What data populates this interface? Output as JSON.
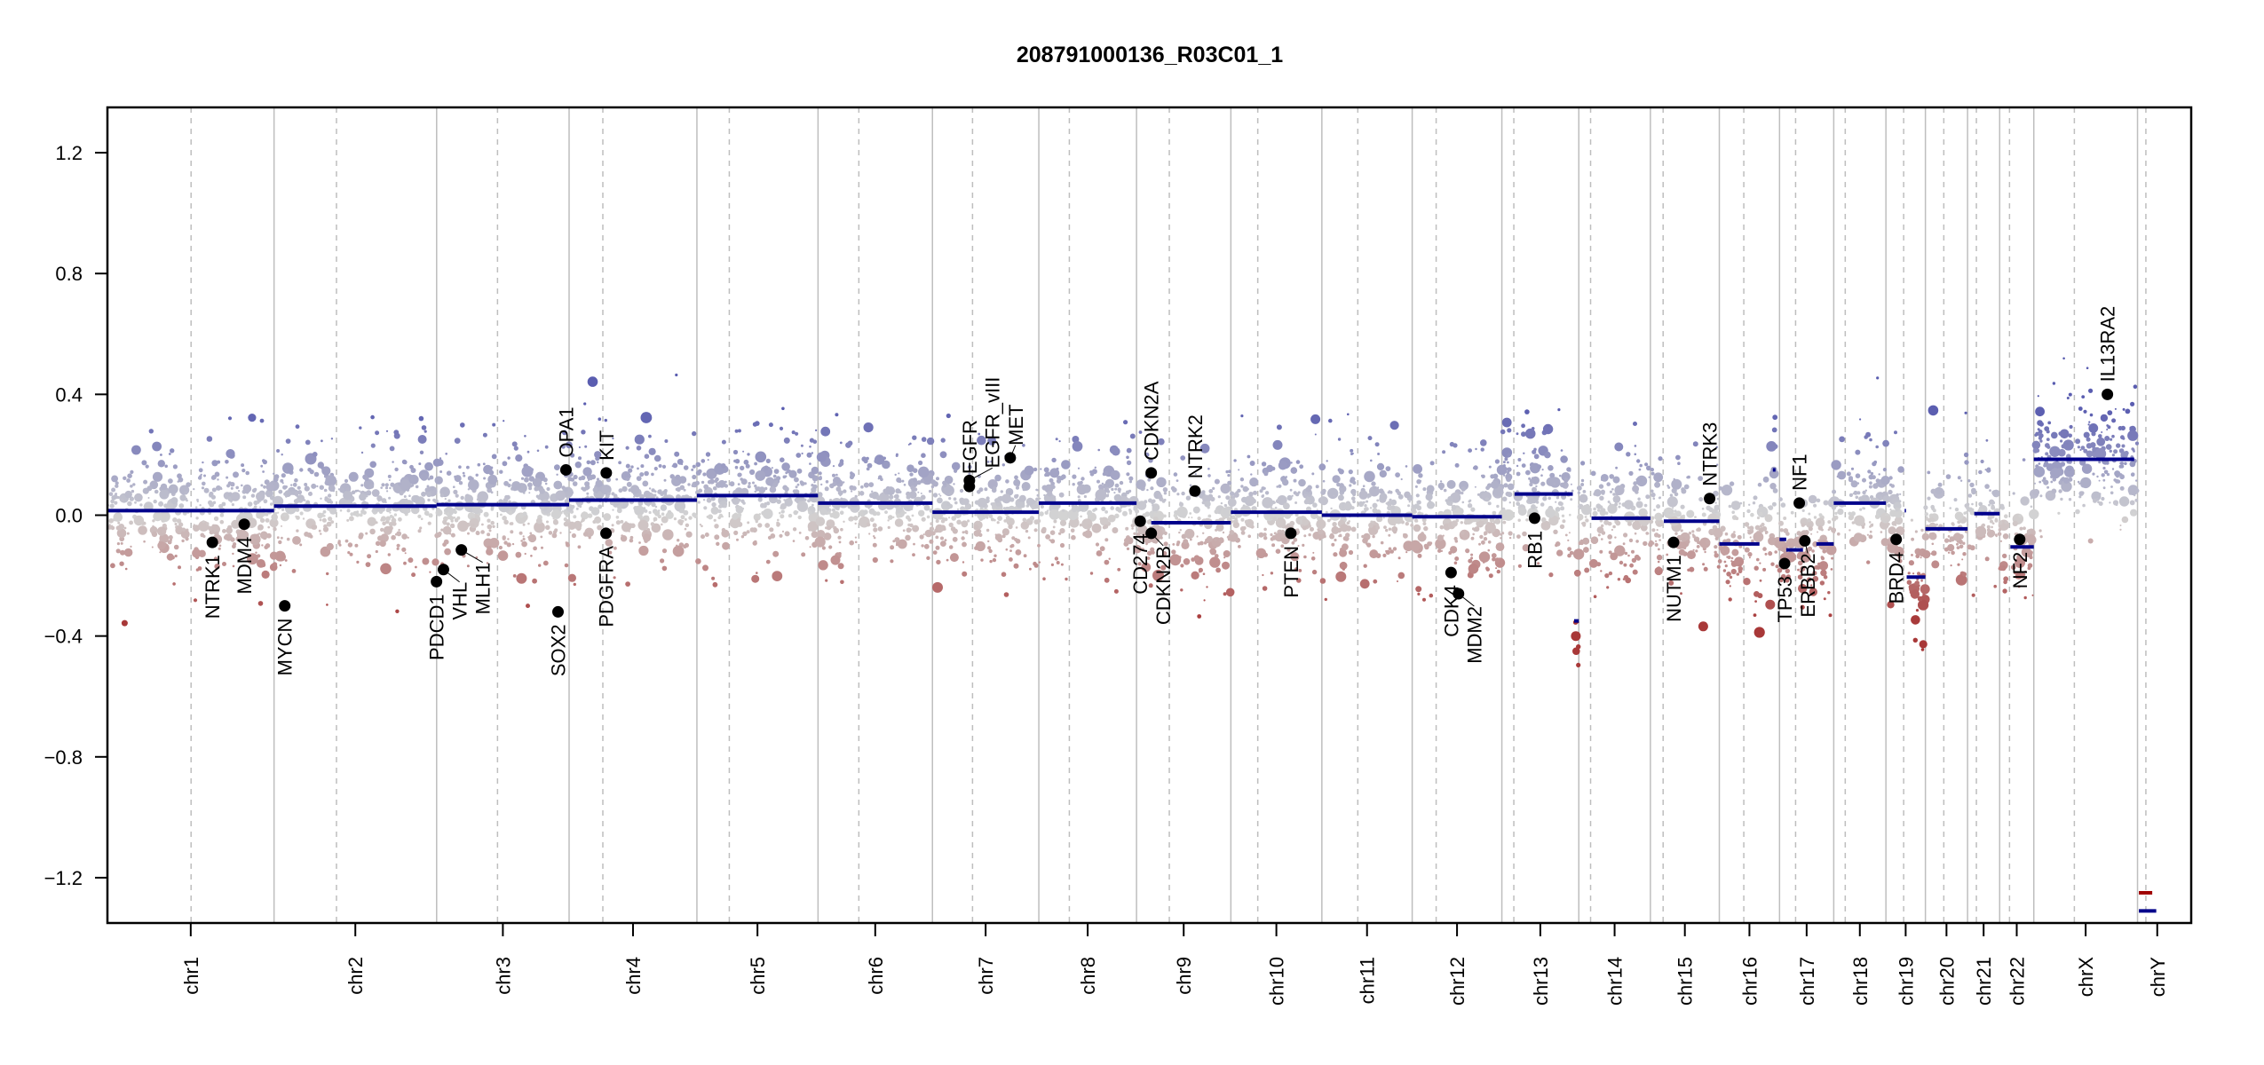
{
  "chart_data": {
    "type": "scatter",
    "title": "208791000136_R03C01_1",
    "xlabel": "",
    "ylabel": "",
    "ylim": [
      -1.35,
      1.35
    ],
    "yticks": [
      -1.2,
      -0.8,
      -0.4,
      0.0,
      0.4,
      0.8,
      1.2
    ],
    "ytick_labels": [
      "-1.2",
      "-0.8",
      "-0.4",
      "0.0",
      "0.4",
      "0.8",
      "1.2"
    ],
    "grid": false,
    "colors": {
      "gain": "#5a5db0",
      "neutral": "#d3d3d3",
      "loss": "#a83838",
      "segment": "#00008b",
      "segment_y": "#a00000",
      "gene": "#000000",
      "chrom_line": "#bebebe"
    },
    "chromosomes": [
      {
        "name": "chr1",
        "length_mb": 249,
        "centromere_mb": 125
      },
      {
        "name": "chr2",
        "length_mb": 243,
        "centromere_mb": 93.3
      },
      {
        "name": "chr3",
        "length_mb": 198,
        "centromere_mb": 91
      },
      {
        "name": "chr4",
        "length_mb": 191,
        "centromere_mb": 50.4
      },
      {
        "name": "chr5",
        "length_mb": 181,
        "centromere_mb": 48.4
      },
      {
        "name": "chr6",
        "length_mb": 171,
        "centromere_mb": 61
      },
      {
        "name": "chr7",
        "length_mb": 159,
        "centromere_mb": 59.9
      },
      {
        "name": "chr8",
        "length_mb": 146,
        "centromere_mb": 45.6
      },
      {
        "name": "chr9",
        "length_mb": 141,
        "centromere_mb": 49
      },
      {
        "name": "chr10",
        "length_mb": 136,
        "centromere_mb": 40.2
      },
      {
        "name": "chr11",
        "length_mb": 135,
        "centromere_mb": 53.7
      },
      {
        "name": "chr12",
        "length_mb": 134,
        "centromere_mb": 35.8
      },
      {
        "name": "chr13",
        "length_mb": 115,
        "centromere_mb": 17.9
      },
      {
        "name": "chr14",
        "length_mb": 107,
        "centromere_mb": 17.6
      },
      {
        "name": "chr15",
        "length_mb": 103,
        "centromere_mb": 19
      },
      {
        "name": "chr16",
        "length_mb": 90,
        "centromere_mb": 36.6
      },
      {
        "name": "chr17",
        "length_mb": 81,
        "centromere_mb": 24
      },
      {
        "name": "chr18",
        "length_mb": 78,
        "centromere_mb": 17.2
      },
      {
        "name": "chr19",
        "length_mb": 59,
        "centromere_mb": 26.5
      },
      {
        "name": "chr20",
        "length_mb": 63,
        "centromere_mb": 27.5
      },
      {
        "name": "chr21",
        "length_mb": 48,
        "centromere_mb": 13.2
      },
      {
        "name": "chr22",
        "length_mb": 51,
        "centromere_mb": 14.7
      },
      {
        "name": "chrX",
        "length_mb": 155,
        "centromere_mb": 60.6
      },
      {
        "name": "chrY",
        "length_mb": 59,
        "centromere_mb": 12.5
      }
    ],
    "segments": [
      {
        "chr": "chr1",
        "start": 0,
        "end": 249,
        "value": 0.015
      },
      {
        "chr": "chr2",
        "start": 0,
        "end": 243,
        "value": 0.03
      },
      {
        "chr": "chr3",
        "start": 0,
        "end": 198,
        "value": 0.035
      },
      {
        "chr": "chr4",
        "start": 0,
        "end": 191,
        "value": 0.05
      },
      {
        "chr": "chr5",
        "start": 0,
        "end": 181,
        "value": 0.065
      },
      {
        "chr": "chr6",
        "start": 0,
        "end": 171,
        "value": 0.04
      },
      {
        "chr": "chr7",
        "start": 0,
        "end": 159,
        "value": 0.01
      },
      {
        "chr": "chr8",
        "start": 0,
        "end": 146,
        "value": 0.04
      },
      {
        "chr": "chr9",
        "start": 22,
        "end": 141,
        "value": -0.025
      },
      {
        "chr": "chr10",
        "start": 0,
        "end": 136,
        "value": 0.01
      },
      {
        "chr": "chr11",
        "start": 0,
        "end": 135,
        "value": 0.0
      },
      {
        "chr": "chr12",
        "start": 0,
        "end": 134,
        "value": -0.005
      },
      {
        "chr": "chr13",
        "start": 19,
        "end": 106,
        "value": 0.07
      },
      {
        "chr": "chr13",
        "start": 108,
        "end": 115,
        "value": -0.35
      },
      {
        "chr": "chr14",
        "start": 19,
        "end": 107,
        "value": -0.01
      },
      {
        "chr": "chr15",
        "start": 20,
        "end": 103,
        "value": -0.02
      },
      {
        "chr": "chr16",
        "start": 0,
        "end": 60,
        "value": -0.095
      },
      {
        "chr": "chr16",
        "start": 80,
        "end": 84,
        "value": 0.15
      },
      {
        "chr": "chr17",
        "start": 0,
        "end": 10,
        "value": -0.08
      },
      {
        "chr": "chr17",
        "start": 10,
        "end": 35,
        "value": -0.115
      },
      {
        "chr": "chr17",
        "start": 55,
        "end": 81,
        "value": -0.095
      },
      {
        "chr": "chr18",
        "start": 0,
        "end": 78,
        "value": 0.04
      },
      {
        "chr": "chr19",
        "start": 28,
        "end": 30,
        "value": 0.015
      },
      {
        "chr": "chr19",
        "start": 31,
        "end": 59,
        "value": -0.205
      },
      {
        "chr": "chr20",
        "start": 0,
        "end": 63,
        "value": -0.045
      },
      {
        "chr": "chr21",
        "start": 10,
        "end": 48,
        "value": 0.005
      },
      {
        "chr": "chr22",
        "start": 16,
        "end": 51,
        "value": -0.105
      },
      {
        "chrY": true,
        "chr": "chrY",
        "start": 2,
        "end": 28,
        "value": -1.31
      },
      {
        "chr": "chrX",
        "start": 0,
        "end": 150,
        "value": 0.185
      }
    ],
    "segments_y_red": [
      {
        "chr": "chrY",
        "start": 2,
        "end": 22,
        "value": -1.25
      }
    ],
    "genes": [
      {
        "name": "NTRK1",
        "chr": "chr1",
        "pos_mb": 156.8,
        "value": -0.09
      },
      {
        "name": "MDM4",
        "chr": "chr1",
        "pos_mb": 204.5,
        "value": -0.03
      },
      {
        "name": "MYCN",
        "chr": "chr2",
        "pos_mb": 16,
        "value": -0.3
      },
      {
        "name": "PDCD1",
        "chr": "chr2",
        "pos_mb": 242.8,
        "value": -0.22
      },
      {
        "name": "VHL",
        "chr": "chr3",
        "pos_mb": 10.2,
        "value": -0.18
      },
      {
        "name": "MLH1",
        "chr": "chr3",
        "pos_mb": 37,
        "value": -0.115
      },
      {
        "name": "SOX2",
        "chr": "chr3",
        "pos_mb": 181.4,
        "value": -0.32
      },
      {
        "name": "OPA1",
        "chr": "chr3",
        "pos_mb": 193.3,
        "value": 0.15
      },
      {
        "name": "KIT",
        "chr": "chr4",
        "pos_mb": 55.5,
        "value": 0.14
      },
      {
        "name": "PDGFRA",
        "chr": "chr4",
        "pos_mb": 55.1,
        "value": -0.06
      },
      {
        "name": "EGFR",
        "chr": "chr7",
        "pos_mb": 55.1,
        "value": 0.095
      },
      {
        "name": "EGFR_vIII",
        "chr": "chr7",
        "pos_mb": 55.2,
        "value": 0.115
      },
      {
        "name": "MET",
        "chr": "chr7",
        "pos_mb": 116.3,
        "value": 0.19
      },
      {
        "name": "CD274",
        "chr": "chr9",
        "pos_mb": 5.5,
        "value": -0.02
      },
      {
        "name": "CDKN2A",
        "chr": "chr9",
        "pos_mb": 21.97,
        "value": 0.14
      },
      {
        "name": "CDKN2B",
        "chr": "chr9",
        "pos_mb": 22.0,
        "value": -0.06
      },
      {
        "name": "NTRK2",
        "chr": "chr9",
        "pos_mb": 87.3,
        "value": 0.08
      },
      {
        "name": "PTEN",
        "chr": "chr10",
        "pos_mb": 89.6,
        "value": -0.06
      },
      {
        "name": "CDK4",
        "chr": "chr12",
        "pos_mb": 58.1,
        "value": -0.19
      },
      {
        "name": "MDM2",
        "chr": "chr12",
        "pos_mb": 69.2,
        "value": -0.26
      },
      {
        "name": "RB1",
        "chr": "chr13",
        "pos_mb": 48.9,
        "value": -0.01
      },
      {
        "name": "NUTM1",
        "chr": "chr15",
        "pos_mb": 34.6,
        "value": -0.09
      },
      {
        "name": "NTRK3",
        "chr": "chr15",
        "pos_mb": 88.5,
        "value": 0.055
      },
      {
        "name": "TP53",
        "chr": "chr17",
        "pos_mb": 7.5,
        "value": -0.16
      },
      {
        "name": "NF1",
        "chr": "chr17",
        "pos_mb": 29.5,
        "value": 0.04
      },
      {
        "name": "ERBB2",
        "chr": "chr17",
        "pos_mb": 37.8,
        "value": -0.085
      },
      {
        "name": "BRD4",
        "chr": "chr19",
        "pos_mb": 15.3,
        "value": -0.08
      },
      {
        "name": "NF2",
        "chr": "chr22",
        "pos_mb": 29.9,
        "value": -0.08
      },
      {
        "name": "IL13RA2",
        "chr": "chrX",
        "pos_mb": 110,
        "value": 0.4
      }
    ]
  }
}
